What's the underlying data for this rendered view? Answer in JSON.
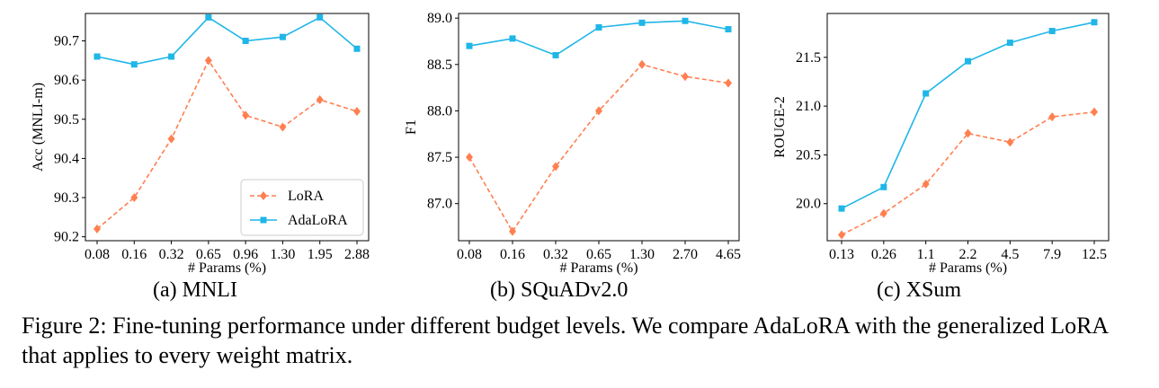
{
  "chart_data": [
    {
      "type": "line",
      "subcaption": "(a) MNLI",
      "xlabel": "# Params (%)",
      "ylabel": "Acc (MNLI-m)",
      "categories": [
        "0.08",
        "0.16",
        "0.32",
        "0.65",
        "0.96",
        "1.30",
        "1.95",
        "2.88"
      ],
      "ylim": [
        90.19,
        90.77
      ],
      "yticks": [
        "90.2",
        "90.3",
        "90.4",
        "90.5",
        "90.6",
        "90.7"
      ],
      "legend": "lower-right",
      "series": [
        {
          "name": "LoRA",
          "color": "#ff7f50",
          "marker": "diamond",
          "dashed": true,
          "values": [
            90.22,
            90.3,
            90.45,
            90.65,
            90.51,
            90.48,
            90.55,
            90.52
          ]
        },
        {
          "name": "AdaLoRA",
          "color": "#1fb6e8",
          "marker": "square",
          "dashed": false,
          "values": [
            90.66,
            90.64,
            90.66,
            90.76,
            90.7,
            90.71,
            90.76,
            90.68
          ]
        }
      ]
    },
    {
      "type": "line",
      "subcaption": "(b) SQuADv2.0",
      "xlabel": "# Params (%)",
      "ylabel": "F1",
      "categories": [
        "0.08",
        "0.16",
        "0.32",
        "0.65",
        "1.30",
        "2.70",
        "4.65"
      ],
      "ylim": [
        86.6,
        89.05
      ],
      "yticks": [
        "87.0",
        "87.5",
        "88.0",
        "88.5",
        "89.0"
      ],
      "legend": "none",
      "series": [
        {
          "name": "LoRA",
          "color": "#ff7f50",
          "marker": "diamond",
          "dashed": true,
          "values": [
            87.5,
            86.7,
            87.4,
            88.0,
            88.5,
            88.37,
            88.3
          ]
        },
        {
          "name": "AdaLoRA",
          "color": "#1fb6e8",
          "marker": "square",
          "dashed": false,
          "values": [
            88.7,
            88.78,
            88.6,
            88.9,
            88.95,
            88.97,
            88.88
          ]
        }
      ]
    },
    {
      "type": "line",
      "subcaption": "(c) XSum",
      "xlabel": "# Params (%)",
      "ylabel": "ROUGE-2",
      "categories": [
        "0.13",
        "0.26",
        "1.1",
        "2.2",
        "4.5",
        "7.9",
        "12.5"
      ],
      "ylim": [
        19.62,
        21.95
      ],
      "yticks": [
        "20.0",
        "20.5",
        "21.0",
        "21.5"
      ],
      "legend": "none",
      "series": [
        {
          "name": "LoRA",
          "color": "#ff7f50",
          "marker": "diamond",
          "dashed": true,
          "values": [
            19.68,
            19.9,
            20.2,
            20.72,
            20.63,
            20.89,
            20.94
          ]
        },
        {
          "name": "AdaLoRA",
          "color": "#1fb6e8",
          "marker": "square",
          "dashed": false,
          "values": [
            19.95,
            20.17,
            21.13,
            21.46,
            21.65,
            21.77,
            21.86
          ]
        }
      ]
    }
  ],
  "caption": "Figure 2: Fine-tuning performance under different budget levels. We compare AdaLoRA with the generalized LoRA that applies to every weight matrix."
}
